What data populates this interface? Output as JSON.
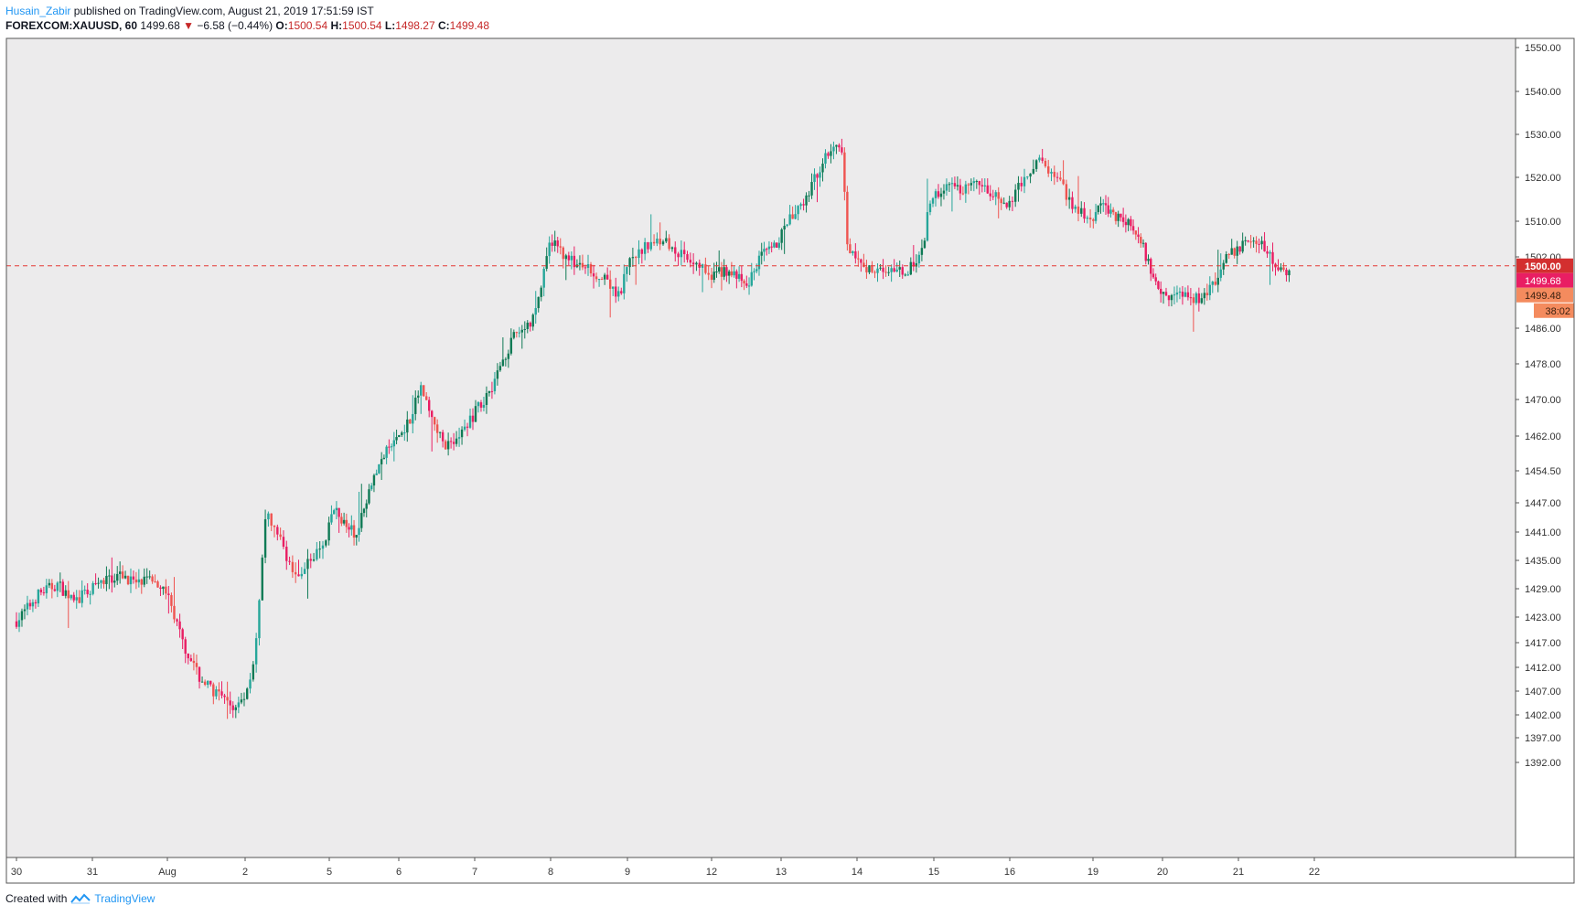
{
  "header": {
    "author": "Husain_Zabir",
    "published_text": "published on TradingView.com, August 21, 2019 17:51:59 IST"
  },
  "symbol_line": {
    "symbol": "FOREXCOM:XAUUSD, 60",
    "last": "1499.68",
    "change": "−6.58 (−0.44%)",
    "open_label": "O:",
    "open": "1500.54",
    "high_label": "H:",
    "high": "1500.54",
    "low_label": "L:",
    "low": "1498.27",
    "close_label": "C:",
    "close": "1499.48"
  },
  "footer": {
    "created_with": "Created with",
    "brand": "TradingView"
  },
  "colors": {
    "background": "#ecebec",
    "up": "#26a69a",
    "up_dark": "#0f7a55",
    "down": "#ef5350",
    "down_pink": "#e91e63",
    "accent": "#2196f3",
    "price_line": "#e53935"
  },
  "chart_data": {
    "type": "candlestick",
    "interval": "60",
    "x_tick_labels": [
      "30",
      "31",
      "Aug",
      "2",
      "5",
      "6",
      "7",
      "8",
      "9",
      "12",
      "13",
      "14",
      "15",
      "16",
      "19",
      "20",
      "21",
      "22"
    ],
    "y_ticks": [
      "1550.00",
      "1540.00",
      "1530.00",
      "1520.00",
      "1510.00",
      "1502.00",
      "1486.00",
      "1478.00",
      "1470.00",
      "1462.00",
      "1454.50",
      "1447.00",
      "1441.00",
      "1435.00",
      "1429.00",
      "1423.00",
      "1417.00",
      "1412.00",
      "1407.00",
      "1402.00",
      "1397.00",
      "1392.00"
    ],
    "price_labels": [
      {
        "text": "1500.00",
        "value": 1500.0,
        "color": "#d32f2f"
      },
      {
        "text": "1499.68",
        "value": 1499.68,
        "color": "#e91e63"
      },
      {
        "text": "1499.48",
        "value": 1499.48,
        "color": "#f48b5e"
      },
      {
        "text": "38:02",
        "value": 1499.48,
        "color": "#f48b5e"
      }
    ],
    "reference_line": 1500.0,
    "close_path": [
      [
        0,
        1422
      ],
      [
        0.3,
        1428
      ],
      [
        0.55,
        1430
      ],
      [
        0.75,
        1426
      ],
      [
        1.0,
        1429
      ],
      [
        1.2,
        1431
      ],
      [
        1.4,
        1432
      ],
      [
        1.6,
        1430
      ],
      [
        1.85,
        1431
      ],
      [
        2.0,
        1428
      ],
      [
        2.2,
        1417
      ],
      [
        2.4,
        1410
      ],
      [
        2.6,
        1407
      ],
      [
        2.85,
        1403
      ],
      [
        3.0,
        1406
      ],
      [
        3.12,
        1415
      ],
      [
        3.25,
        1445
      ],
      [
        3.45,
        1438
      ],
      [
        3.6,
        1431
      ],
      [
        3.8,
        1436
      ],
      [
        3.95,
        1438
      ],
      [
        4.05,
        1446
      ],
      [
        4.2,
        1443
      ],
      [
        4.4,
        1440
      ],
      [
        4.6,
        1452
      ],
      [
        4.8,
        1458
      ],
      [
        5.0,
        1462
      ],
      [
        5.15,
        1466
      ],
      [
        5.3,
        1473
      ],
      [
        5.45,
        1465
      ],
      [
        5.6,
        1460
      ],
      [
        5.8,
        1462
      ],
      [
        6.0,
        1467
      ],
      [
        6.2,
        1472
      ],
      [
        6.4,
        1480
      ],
      [
        6.55,
        1485
      ],
      [
        6.75,
        1487
      ],
      [
        6.9,
        1497
      ],
      [
        7.0,
        1506
      ],
      [
        7.15,
        1503
      ],
      [
        7.35,
        1500
      ],
      [
        7.55,
        1499
      ],
      [
        7.75,
        1496
      ],
      [
        7.9,
        1493
      ],
      [
        8.0,
        1500
      ],
      [
        8.2,
        1504
      ],
      [
        8.4,
        1506
      ],
      [
        8.6,
        1503
      ],
      [
        8.8,
        1501
      ],
      [
        9.0,
        1498
      ],
      [
        9.2,
        1499
      ],
      [
        9.4,
        1497
      ],
      [
        9.5,
        1495
      ],
      [
        9.7,
        1502
      ],
      [
        9.9,
        1504
      ],
      [
        10.1,
        1510
      ],
      [
        10.3,
        1514
      ],
      [
        10.45,
        1520
      ],
      [
        10.6,
        1526
      ],
      [
        10.75,
        1528
      ],
      [
        10.8,
        1525
      ],
      [
        10.88,
        1504
      ],
      [
        11.1,
        1499
      ],
      [
        11.3,
        1500
      ],
      [
        11.5,
        1498
      ],
      [
        11.75,
        1500
      ],
      [
        11.85,
        1503
      ],
      [
        11.95,
        1515
      ],
      [
        12.2,
        1518
      ],
      [
        12.4,
        1517
      ],
      [
        12.6,
        1519
      ],
      [
        12.85,
        1515
      ],
      [
        13.0,
        1514
      ],
      [
        13.15,
        1519
      ],
      [
        13.35,
        1524
      ],
      [
        13.55,
        1520
      ],
      [
        13.75,
        1514
      ],
      [
        13.95,
        1510
      ],
      [
        14.15,
        1514
      ],
      [
        14.35,
        1511
      ],
      [
        14.55,
        1509
      ],
      [
        14.7,
        1505
      ],
      [
        14.9,
        1496
      ],
      [
        15.1,
        1493
      ],
      [
        15.3,
        1494
      ],
      [
        15.5,
        1492
      ],
      [
        15.7,
        1496
      ],
      [
        15.85,
        1502
      ],
      [
        16.0,
        1504
      ],
      [
        16.2,
        1506
      ],
      [
        16.4,
        1503
      ],
      [
        16.6,
        1498
      ],
      [
        16.7,
        1499.5
      ]
    ]
  }
}
